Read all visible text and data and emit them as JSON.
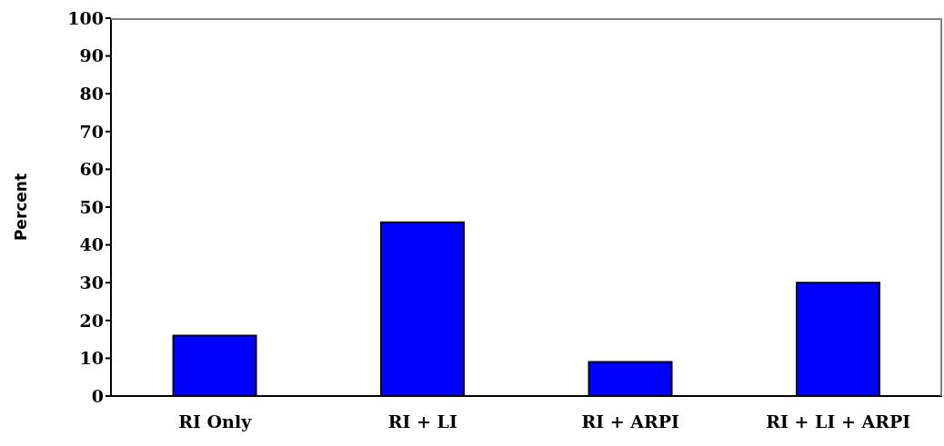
{
  "chart_data": {
    "type": "bar",
    "ylabel": "Percent",
    "categories": [
      "RI Only",
      "RI + LI",
      "RI + ARPI",
      "RI + LI + ARPI"
    ],
    "values": [
      16,
      46,
      9,
      30
    ],
    "color": "#0000ff",
    "ylim": [
      0,
      100
    ],
    "yticks": [
      0,
      10,
      20,
      30,
      40,
      50,
      60,
      70,
      80,
      90,
      100
    ],
    "grid": false,
    "legend": false
  }
}
